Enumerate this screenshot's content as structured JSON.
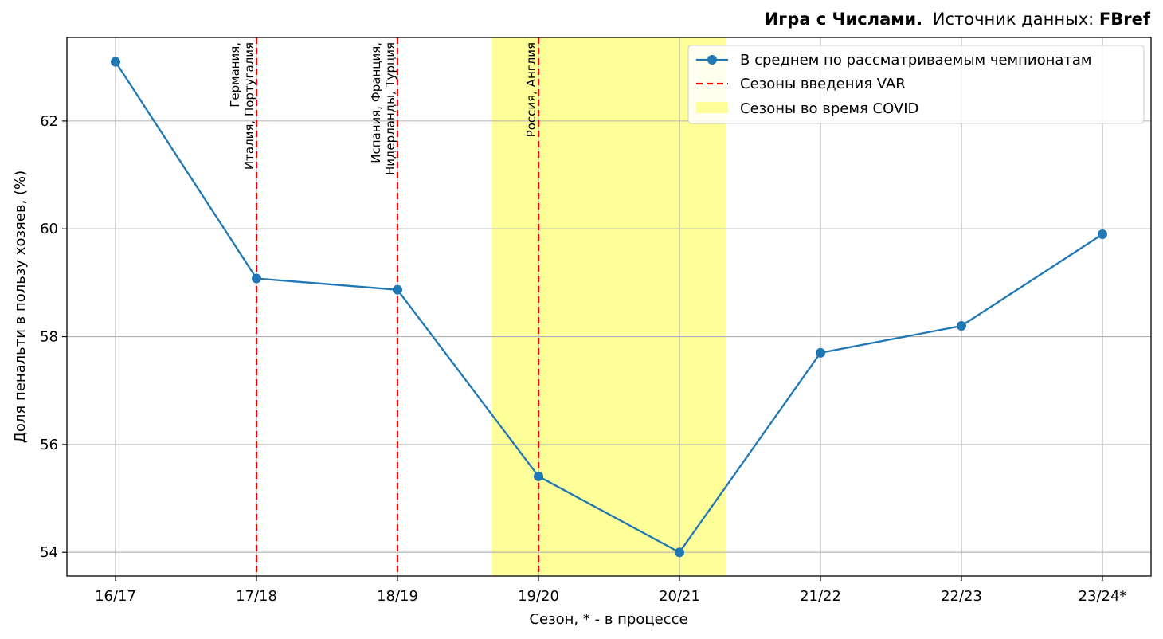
{
  "header": {
    "brand": "Игра с Числами.",
    "source_prefix": "Источник данных:",
    "source_name": "FBref"
  },
  "chart_data": {
    "type": "line",
    "xlabel": "Сезон, * - в процессе",
    "ylabel": "Доля пенальти в пользу хозяев, (%)",
    "categories": [
      "16/17",
      "17/18",
      "18/19",
      "19/20",
      "20/21",
      "21/22",
      "22/23",
      "23/24*"
    ],
    "ylim": [
      53.56,
      63.55
    ],
    "yticks": [
      54,
      56,
      58,
      60,
      62
    ],
    "grid": true,
    "series": [
      {
        "name": "В среднем по рассматриваемым чемпионатам",
        "values": [
          63.1,
          59.08,
          58.87,
          55.41,
          54.0,
          57.7,
          58.2,
          59.9
        ],
        "color": "#1f77b4"
      }
    ],
    "var_lines": {
      "legend": "Сезоны введения VAR",
      "color": "#ff0000",
      "items": [
        {
          "season": "17/18",
          "label_lines": [
            "Германия,",
            "Италия, Португалия"
          ]
        },
        {
          "season": "18/19",
          "label_lines": [
            "Испания, Франция,",
            "Нидерланды, Турция"
          ]
        },
        {
          "season": "19/20",
          "label_lines": [
            "Россия, Англия"
          ]
        }
      ]
    },
    "covid": {
      "legend": "Сезоны во время COVID",
      "from_index": 2.67,
      "to_index": 4.33,
      "color": "#ffff99"
    },
    "legend_position": "upper right"
  }
}
